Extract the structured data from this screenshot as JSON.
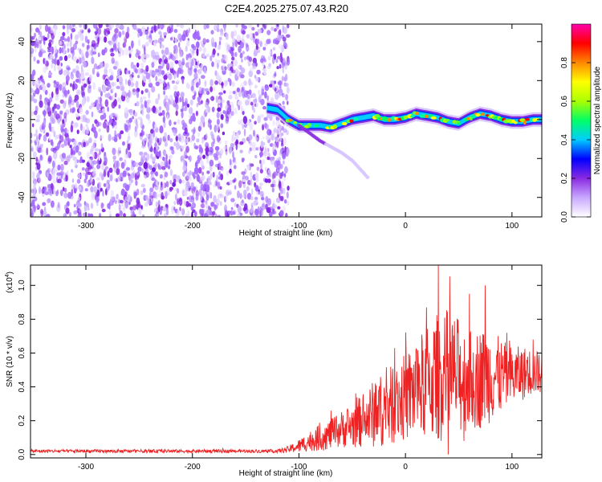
{
  "title": "C2E4.2025.275.07.43.R20",
  "chart_data": [
    {
      "type": "heatmap",
      "xlabel": "Height of straight line (km)",
      "ylabel": "Frequency (Hz)",
      "xlim": [
        -352,
        128
      ],
      "ylim": [
        -50,
        49
      ],
      "xticks": [
        -300,
        -200,
        -100,
        0,
        100
      ],
      "xtick_labels": [
        "-300",
        "-200",
        "-100",
        "0",
        "100"
      ],
      "yticks": [
        -40,
        -20,
        0,
        20,
        40
      ],
      "ytick_labels": [
        "-40",
        "-20",
        "0",
        "20",
        "40"
      ],
      "noise_region_x": [
        -352,
        -110
      ],
      "ridge": {
        "x": [
          -130,
          -120,
          -110,
          -100,
          -90,
          -80,
          -70,
          -60,
          -50,
          -40,
          -30,
          -20,
          -10,
          0,
          10,
          20,
          30,
          40,
          50,
          60,
          70,
          80,
          90,
          100,
          110,
          120,
          128
        ],
        "freq": [
          6,
          5,
          0,
          -3,
          -3,
          -3,
          -4,
          -2,
          0,
          1,
          2,
          0,
          0,
          1,
          3,
          2,
          1,
          -1,
          -2,
          1,
          3,
          2,
          0,
          -1,
          -1,
          0,
          0
        ]
      },
      "secondary_tail": {
        "x": [
          -100,
          -90,
          -80,
          -70,
          -60,
          -50,
          -45,
          -40,
          -35
        ],
        "freq": [
          -3,
          -7,
          -11,
          -14,
          -17,
          -21,
          -24,
          -27,
          -30
        ]
      },
      "colorbar": {
        "label": "Normalized spectral amplitude",
        "ticks": [
          0.0,
          0.2,
          0.4,
          0.6,
          0.8
        ],
        "tick_labels": [
          "0.0",
          "0.2",
          "0.4",
          "0.6",
          "0.8"
        ],
        "range": [
          0,
          1
        ],
        "colors": [
          "#ffffff",
          "#c9a8ff",
          "#8a2be2",
          "#0000ff",
          "#00ccff",
          "#00ff66",
          "#aaff00",
          "#ffff00",
          "#ff8800",
          "#ff0000",
          "#ff00aa"
        ]
      }
    },
    {
      "type": "line",
      "xlabel": "Height of straight line (km)",
      "ylabel": "SNR (10 * v/v)",
      "ylabel_scale": "(x10",
      "ylabel_scale_exp": "4",
      "ylabel_scale_close": ")",
      "xlim": [
        -352,
        128
      ],
      "ylim": [
        -0.02,
        1.12
      ],
      "xticks": [
        -300,
        -200,
        -100,
        0,
        100
      ],
      "xtick_labels": [
        "-300",
        "-200",
        "-100",
        "0",
        "100"
      ],
      "yticks": [
        0.0,
        0.2,
        0.4,
        0.6,
        0.8,
        1.0
      ],
      "ytick_labels": [
        "0.0",
        "0.2",
        "0.4",
        "0.6",
        "0.8",
        "1.0"
      ],
      "color": "#ee2222",
      "envelope": {
        "x": [
          -352,
          -120,
          -110,
          -100,
          -90,
          -80,
          -70,
          -60,
          -50,
          -40,
          -30,
          -20,
          -10,
          0,
          10,
          20,
          30,
          40,
          50,
          60,
          70,
          80,
          90,
          100,
          110,
          120,
          128
        ],
        "mean": [
          0.02,
          0.02,
          0.03,
          0.05,
          0.08,
          0.1,
          0.12,
          0.15,
          0.17,
          0.2,
          0.24,
          0.27,
          0.3,
          0.34,
          0.38,
          0.42,
          0.46,
          0.47,
          0.46,
          0.44,
          0.45,
          0.47,
          0.46,
          0.46,
          0.48,
          0.49,
          0.48
        ],
        "spread": [
          0.01,
          0.01,
          0.02,
          0.04,
          0.06,
          0.08,
          0.09,
          0.11,
          0.13,
          0.16,
          0.2,
          0.22,
          0.24,
          0.26,
          0.3,
          0.34,
          0.38,
          0.4,
          0.35,
          0.3,
          0.3,
          0.28,
          0.22,
          0.18,
          0.16,
          0.14,
          0.12
        ]
      },
      "peaks": [
        {
          "x": -70,
          "y": 0.26
        },
        {
          "x": -40,
          "y": 0.33
        },
        {
          "x": -25,
          "y": 0.37
        },
        {
          "x": -10,
          "y": 0.63
        },
        {
          "x": 10,
          "y": 0.62
        },
        {
          "x": 20,
          "y": 0.87
        },
        {
          "x": 31,
          "y": 1.12
        },
        {
          "x": 40,
          "y": 0.92
        },
        {
          "x": 60,
          "y": 0.95
        },
        {
          "x": 75,
          "y": 1.0
        },
        {
          "x": 95,
          "y": 0.72
        },
        {
          "x": 120,
          "y": 0.68
        }
      ],
      "dips": [
        {
          "x": 40,
          "y": 0.0
        },
        {
          "x": 55,
          "y": 0.08
        }
      ]
    }
  ]
}
